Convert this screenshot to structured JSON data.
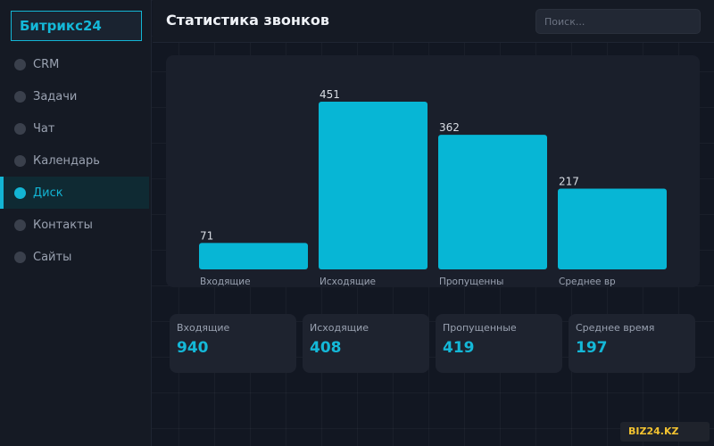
{
  "app": {
    "logo": "Битрикс24"
  },
  "sidebar": {
    "items": [
      {
        "label": "CRM",
        "active": false
      },
      {
        "label": "Задачи",
        "active": false
      },
      {
        "label": "Чат",
        "active": false
      },
      {
        "label": "Календарь",
        "active": false
      },
      {
        "label": "Диск",
        "active": true
      },
      {
        "label": "Контакты",
        "active": false
      },
      {
        "label": "Сайты",
        "active": false
      }
    ]
  },
  "header": {
    "title": "Статистика звонков",
    "search_placeholder": "Поиск..."
  },
  "chart_data": {
    "type": "bar",
    "categories": [
      "Входящие",
      "Исходящие",
      "Пропущенны",
      "Среднее вр"
    ],
    "values": [
      71,
      451,
      362,
      217
    ],
    "title": "",
    "xlabel": "",
    "ylabel": "",
    "grid": false,
    "bar_color": "#07b6d5"
  },
  "stats": [
    {
      "label": "Входящие",
      "value": "940"
    },
    {
      "label": "Исходящие",
      "value": "408"
    },
    {
      "label": "Пропущенные",
      "value": "419"
    },
    {
      "label": "Среднее время",
      "value": "197"
    }
  ],
  "watermark": "BIZ24.KZ",
  "colors": {
    "accent": "#13b5d4",
    "badge_text": "#f2c230"
  }
}
